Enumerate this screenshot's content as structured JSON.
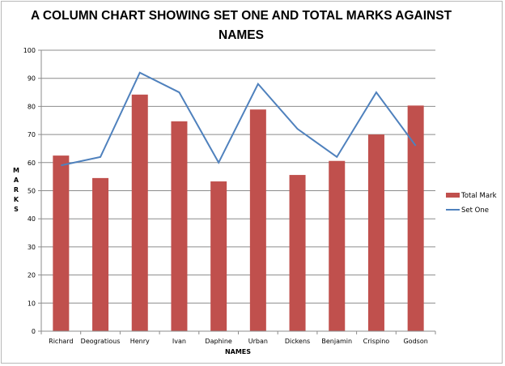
{
  "chart_data": {
    "type": "bar",
    "title_lines": [
      "A COLUMN CHART SHOWING SET ONE AND TOTAL MARKS AGAINST",
      "NAMES"
    ],
    "xlabel": "NAMES",
    "ylabel": "M A R K S",
    "ylabel_letters": [
      "M",
      "A",
      "R",
      "K",
      "S"
    ],
    "ylim": [
      0,
      100
    ],
    "yticks": [
      "0",
      "10",
      "20",
      "30",
      "40",
      "50",
      "60",
      "70",
      "80",
      "90",
      "100"
    ],
    "grid": true,
    "legend_position": "right",
    "categories": [
      "Richard",
      "Deogratious",
      "Henry",
      "Ivan",
      "Daphine",
      "Urban",
      "Dickens",
      "Benjamin",
      "Crispino",
      "Godson"
    ],
    "series": [
      {
        "name": "Total Mark",
        "type": "bar",
        "color": "#c0504d",
        "values": [
          62.5,
          54.5,
          84.2,
          74.7,
          53.3,
          78.9,
          55.6,
          60.6,
          70,
          80.3
        ]
      },
      {
        "name": "Set One",
        "type": "line",
        "color": "#4f81bd",
        "values": [
          59,
          62,
          92,
          85,
          60,
          88,
          72,
          62,
          85,
          66
        ]
      }
    ]
  }
}
